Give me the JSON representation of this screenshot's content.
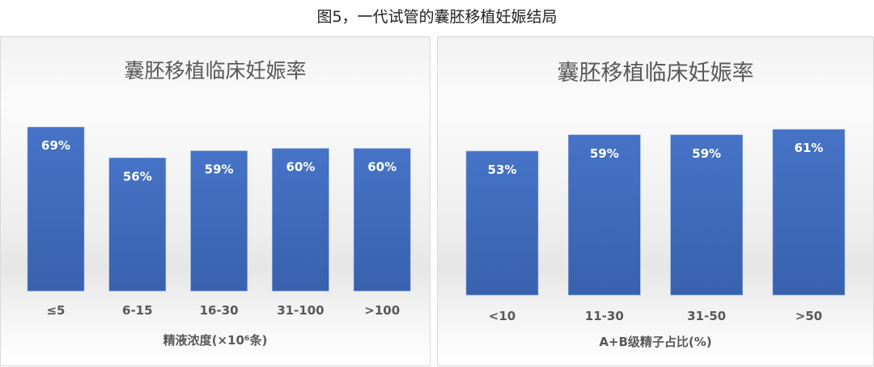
{
  "title": "图5，一代试管的囊胚移植妊娠结局",
  "colors": {
    "bar": "#4472C4",
    "text": "#595959"
  },
  "chart_data": [
    {
      "type": "bar",
      "title": "囊胚移植临床妊娠率",
      "xlabel": "精液浓度(×10⁶条)",
      "ylabel": "",
      "categories": [
        "≤5",
        "6-15",
        "16-30",
        "31-100",
        ">100"
      ],
      "values": [
        69,
        56,
        59,
        60,
        60
      ],
      "data_labels": [
        "69%",
        "56%",
        "59%",
        "60%",
        "60%"
      ],
      "ylim": [
        0,
        100
      ],
      "grid": false
    },
    {
      "type": "bar",
      "title": "囊胚移植临床妊娠率",
      "xlabel": "A+B级精子占比(%)",
      "ylabel": "",
      "categories": [
        "<10",
        "11-30",
        "31-50",
        ">50"
      ],
      "values": [
        53,
        59,
        59,
        61
      ],
      "data_labels": [
        "53%",
        "59%",
        "59%",
        "61%"
      ],
      "ylim": [
        0,
        100
      ],
      "grid": false
    }
  ]
}
